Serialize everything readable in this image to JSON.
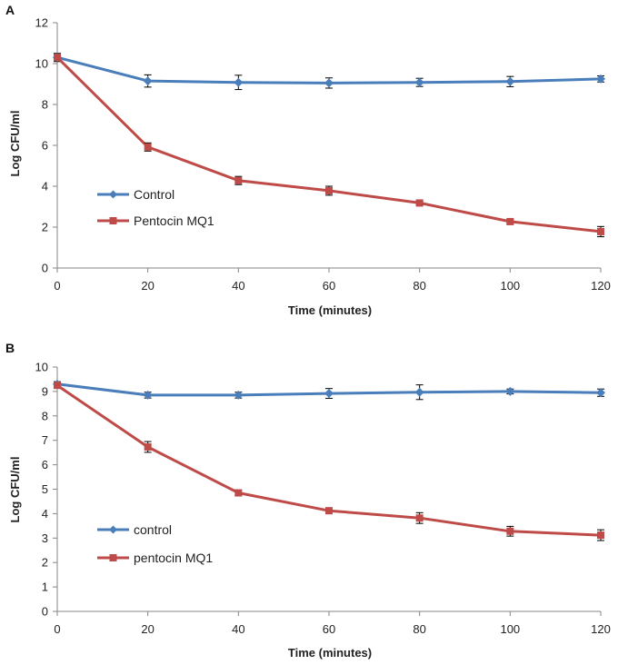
{
  "chart_data": [
    {
      "type": "line",
      "panel_label": "A",
      "xlabel": "Time (minutes)",
      "ylabel": "Log CFU/ml",
      "x": [
        0,
        20,
        40,
        60,
        80,
        100,
        120
      ],
      "x_ticks": [
        "0",
        "20",
        "40",
        "60",
        "80",
        "100",
        "120"
      ],
      "ylim": [
        0,
        12
      ],
      "y_ticks": [
        "0",
        "2",
        "4",
        "6",
        "8",
        "10",
        "12"
      ],
      "legend_position": "middle-left",
      "series": [
        {
          "name": "Control",
          "marker": "diamond",
          "color": "#4a7ebb",
          "values": [
            10.3,
            9.15,
            9.08,
            9.05,
            9.08,
            9.12,
            9.25
          ],
          "errors": [
            0.2,
            0.3,
            0.35,
            0.25,
            0.2,
            0.25,
            0.15
          ]
        },
        {
          "name": "Pentocin MQ1",
          "marker": "square",
          "color": "#be4b48",
          "values": [
            10.3,
            5.92,
            4.28,
            3.78,
            3.18,
            2.27,
            1.78
          ],
          "errors": [
            0.15,
            0.2,
            0.2,
            0.22,
            0.1,
            0.1,
            0.25
          ]
        }
      ]
    },
    {
      "type": "line",
      "panel_label": "B",
      "xlabel": "Time (minutes)",
      "ylabel": "Log CFU/ml",
      "x": [
        0,
        20,
        40,
        60,
        80,
        100,
        120
      ],
      "x_ticks": [
        "0",
        "20",
        "40",
        "60",
        "80",
        "100",
        "120"
      ],
      "ylim": [
        0,
        10
      ],
      "y_ticks": [
        "0",
        "1",
        "2",
        "3",
        "4",
        "5",
        "6",
        "7",
        "8",
        "9",
        "10"
      ],
      "legend_position": "bottom-left",
      "series": [
        {
          "name": "control",
          "marker": "diamond",
          "color": "#4a7ebb",
          "values": [
            9.3,
            8.85,
            8.85,
            8.92,
            8.97,
            9.0,
            8.95
          ],
          "errors": [
            0.1,
            0.12,
            0.12,
            0.2,
            0.3,
            0.1,
            0.15
          ]
        },
        {
          "name": "pentocin MQ1",
          "marker": "square",
          "color": "#be4b48",
          "values": [
            9.25,
            6.73,
            4.85,
            4.12,
            3.82,
            3.28,
            3.12
          ],
          "errors": [
            0.1,
            0.22,
            0.1,
            0.08,
            0.22,
            0.2,
            0.22
          ]
        }
      ]
    }
  ]
}
